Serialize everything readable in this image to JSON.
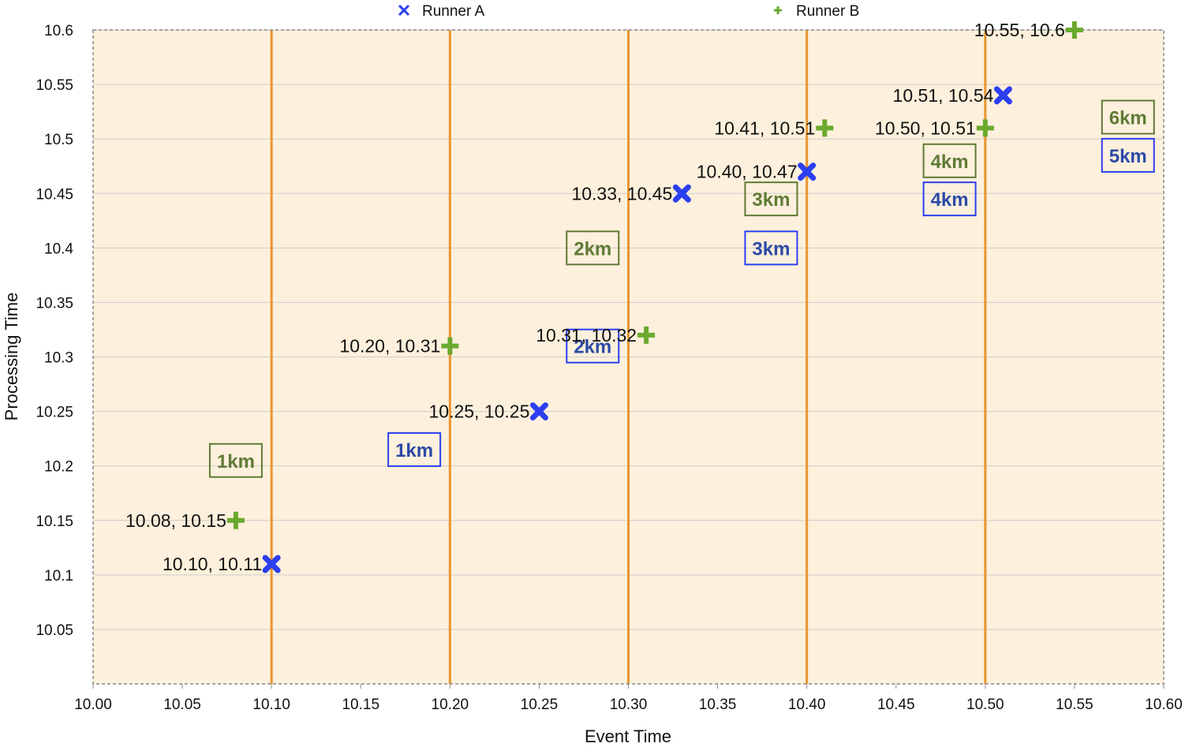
{
  "chart_data": {
    "type": "scatter",
    "xlabel": "Event Time",
    "ylabel": "Processing Time",
    "xlim": [
      10.0,
      10.6
    ],
    "ylim": [
      10.0,
      10.6
    ],
    "x_ticks": [
      "10.00",
      "10.05",
      "10.10",
      "10.15",
      "10.20",
      "10.25",
      "10.30",
      "10.35",
      "10.40",
      "10.45",
      "10.50",
      "10.55",
      "10.60"
    ],
    "y_ticks": [
      "10.05",
      "10.1",
      "10.15",
      "10.2",
      "10.25",
      "10.3",
      "10.35",
      "10.4",
      "10.45",
      "10.5",
      "10.55",
      "10.6"
    ],
    "legend_position": "top",
    "vertical_lines": [
      10.1,
      10.2,
      10.3,
      10.4,
      10.5
    ],
    "colors": {
      "runner_a": "#2b3ff0",
      "runner_b": "#6aaa2e",
      "vertical_line": "#e8952e",
      "plot_bg": "#fdf0dc",
      "km_a_border": "#2b3ff0",
      "km_a_text": "#2c4aa6",
      "km_b_border": "#5f7a35",
      "km_b_text": "#5f7a35"
    },
    "series": [
      {
        "name": "Runner A",
        "marker": "x",
        "points": [
          {
            "x": 10.1,
            "y": 10.11,
            "label": "10.10, 10.11"
          },
          {
            "x": 10.25,
            "y": 10.25,
            "label": "10.25, 10.25"
          },
          {
            "x": 10.33,
            "y": 10.45,
            "label": "10.33, 10.45"
          },
          {
            "x": 10.4,
            "y": 10.47,
            "label": "10.40, 10.47"
          },
          {
            "x": 10.51,
            "y": 10.54,
            "label": "10.51, 10.54"
          }
        ],
        "km_markers": [
          {
            "text": "1km",
            "x": 10.18,
            "y": 10.215
          },
          {
            "text": "2km",
            "x": 10.28,
            "y": 10.31
          },
          {
            "text": "3km",
            "x": 10.38,
            "y": 10.4
          },
          {
            "text": "4km",
            "x": 10.48,
            "y": 10.445
          },
          {
            "text": "5km",
            "x": 10.58,
            "y": 10.485
          }
        ]
      },
      {
        "name": "Runner B",
        "marker": "plus",
        "points": [
          {
            "x": 10.08,
            "y": 10.15,
            "label": "10.08, 10.15"
          },
          {
            "x": 10.2,
            "y": 10.31,
            "label": "10.20, 10.31"
          },
          {
            "x": 10.31,
            "y": 10.32,
            "label": "10.31, 10.32"
          },
          {
            "x": 10.41,
            "y": 10.51,
            "label": "10.41, 10.51"
          },
          {
            "x": 10.5,
            "y": 10.51,
            "label": "10.50, 10.51"
          },
          {
            "x": 10.55,
            "y": 10.6,
            "label": "10.55, 10.6"
          }
        ],
        "km_markers": [
          {
            "text": "1km",
            "x": 10.08,
            "y": 10.205
          },
          {
            "text": "2km",
            "x": 10.28,
            "y": 10.4
          },
          {
            "text": "3km",
            "x": 10.38,
            "y": 10.445
          },
          {
            "text": "4km",
            "x": 10.48,
            "y": 10.48
          },
          {
            "text": "6km",
            "x": 10.58,
            "y": 10.52
          }
        ]
      }
    ]
  }
}
